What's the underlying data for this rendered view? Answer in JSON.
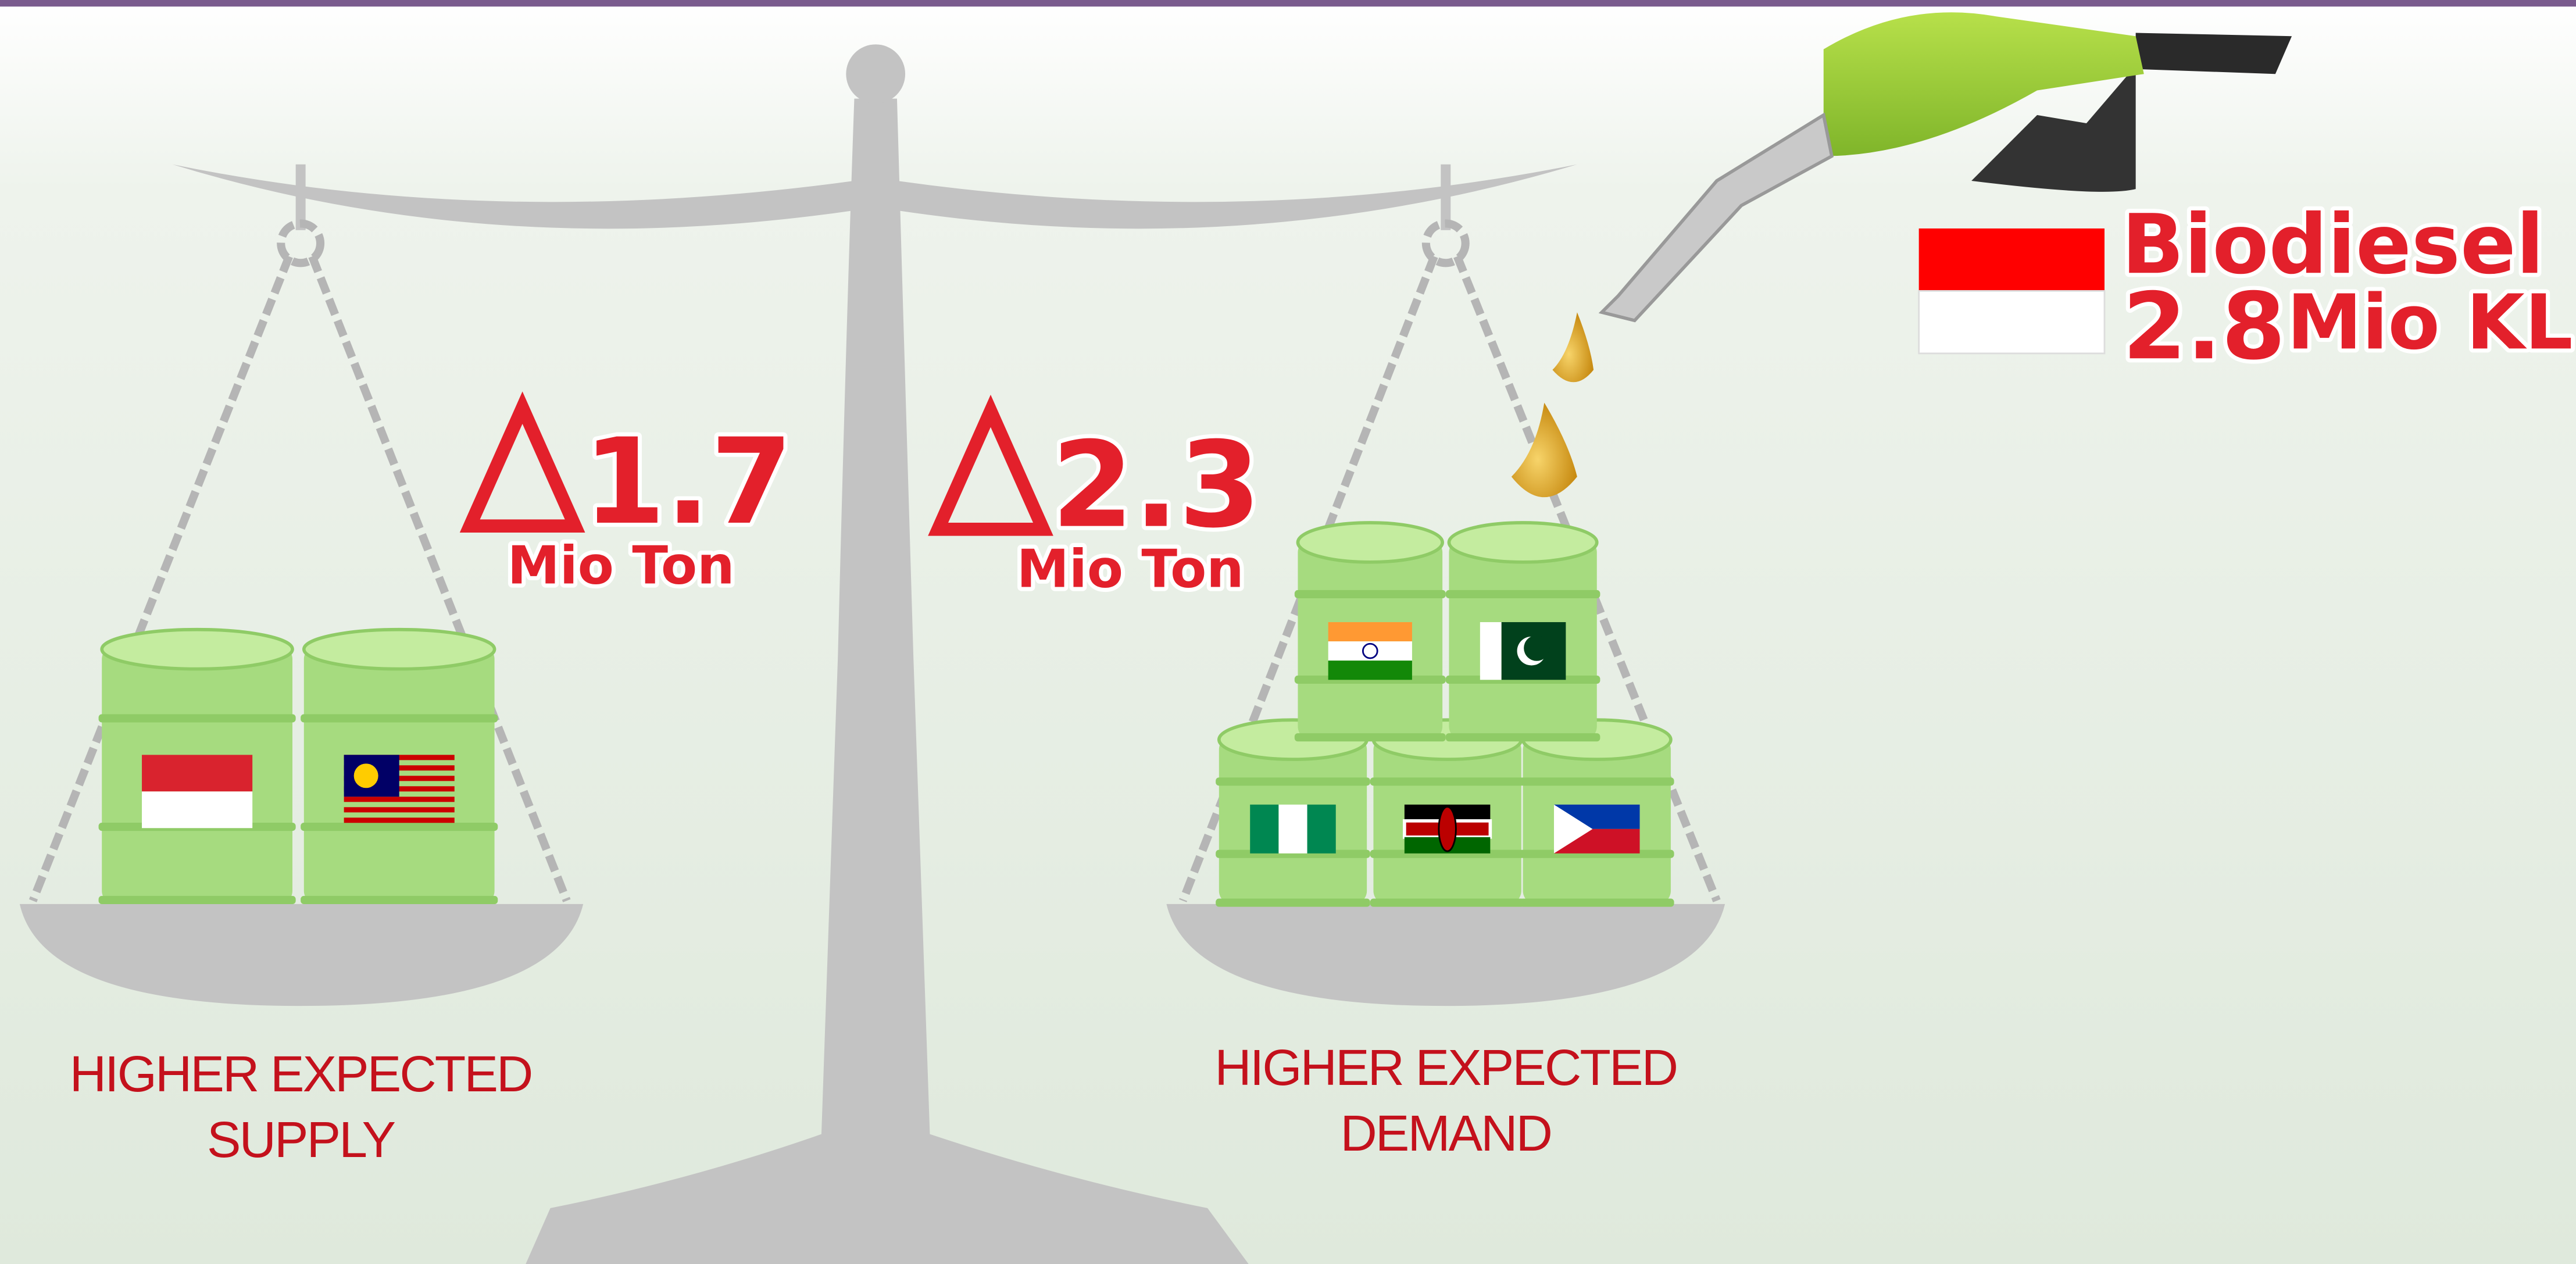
{
  "supply": {
    "change": 1.7,
    "unit": "Mio Ton",
    "label": [
      "HIGHER EXPECTED",
      "SUPPLY"
    ]
  },
  "demand": {
    "change": 2.3,
    "unit": "Mio Ton",
    "label": [
      "HIGHER EXPECTED",
      "DEMAND"
    ]
  },
  "biodiesel": {
    "title": "Biodiesel",
    "value": 2.8,
    "unit": "Mio KL"
  }
}
